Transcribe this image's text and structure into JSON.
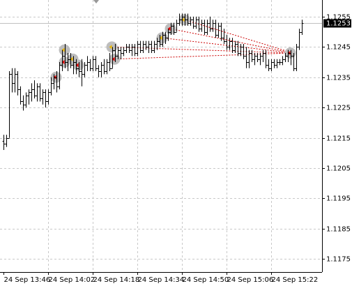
{
  "chart_data": {
    "type": "ohlc",
    "categories": [
      "24 Sep 13:46",
      null,
      null,
      null,
      null,
      null,
      null,
      null,
      null,
      null,
      null,
      null,
      null,
      null,
      null,
      null,
      "24 Sep 14:02",
      null,
      null,
      null,
      null,
      null,
      null,
      null,
      null,
      null,
      null,
      null,
      null,
      null,
      null,
      null,
      "24 Sep 14:18",
      null,
      null,
      null,
      null,
      null,
      null,
      null,
      null,
      null,
      null,
      null,
      null,
      null,
      null,
      null,
      "24 Sep 14:34",
      null,
      null,
      null,
      null,
      null,
      null,
      null,
      null,
      null,
      null,
      null,
      null,
      null,
      null,
      null,
      "24 Sep 14:50",
      null,
      null,
      null,
      null,
      null,
      null,
      null,
      null,
      null,
      null,
      null,
      null,
      null,
      null,
      null,
      "24 Sep 15:06",
      null,
      null,
      null,
      null,
      null,
      null,
      null,
      null,
      null,
      null,
      null,
      null,
      null,
      null,
      null,
      "24 Sep 15:22",
      null,
      null,
      null,
      null,
      null,
      null,
      null,
      null,
      null,
      null,
      null
    ],
    "ohlc": [
      [
        1.1214,
        1.1216,
        1.1211,
        1.1213
      ],
      [
        1.1213,
        1.1216,
        1.1212,
        1.1215
      ],
      [
        1.1215,
        1.1237,
        1.1215,
        1.1236
      ],
      [
        1.1236,
        1.1238,
        1.123,
        1.1233
      ],
      [
        1.1233,
        1.1238,
        1.123,
        1.1236
      ],
      [
        1.1236,
        1.1237,
        1.1229,
        1.1231
      ],
      [
        1.1231,
        1.1232,
        1.1226,
        1.1227
      ],
      [
        1.1227,
        1.1229,
        1.1224,
        1.1226
      ],
      [
        1.1226,
        1.123,
        1.1225,
        1.1229
      ],
      [
        1.1229,
        1.1231,
        1.1226,
        1.123
      ],
      [
        1.123,
        1.1233,
        1.1227,
        1.1231
      ],
      [
        1.1231,
        1.1234,
        1.1228,
        1.1229
      ],
      [
        1.1229,
        1.1233,
        1.1227,
        1.1232
      ],
      [
        1.1232,
        1.1233,
        1.1227,
        1.1228
      ],
      [
        1.1228,
        1.1231,
        1.1226,
        1.123
      ],
      [
        1.123,
        1.1231,
        1.1225,
        1.1227
      ],
      [
        1.1227,
        1.1231,
        1.1226,
        1.123
      ],
      [
        1.123,
        1.1235,
        1.1229,
        1.1233
      ],
      [
        1.1233,
        1.1236,
        1.1231,
        1.1235
      ],
      [
        1.1235,
        1.1237,
        1.123,
        1.1232
      ],
      [
        1.1232,
        1.124,
        1.1231,
        1.1239
      ],
      [
        1.1239,
        1.1244,
        1.1237,
        1.1242
      ],
      [
        1.1242,
        1.1246,
        1.1238,
        1.124
      ],
      [
        1.124,
        1.1243,
        1.1237,
        1.1241
      ],
      [
        1.1241,
        1.1243,
        1.1238,
        1.1239
      ],
      [
        1.1239,
        1.1242,
        1.1236,
        1.124
      ],
      [
        1.124,
        1.1241,
        1.1236,
        1.1238
      ],
      [
        1.1238,
        1.124,
        1.1235,
        1.1237
      ],
      [
        1.1237,
        1.1241,
        1.1232,
        1.1236
      ],
      [
        1.1236,
        1.124,
        1.1235,
        1.1239
      ],
      [
        1.1239,
        1.1242,
        1.1237,
        1.124
      ],
      [
        1.124,
        1.1241,
        1.1237,
        1.1238
      ],
      [
        1.1238,
        1.1242,
        1.1237,
        1.1241
      ],
      [
        1.1241,
        1.1242,
        1.1237,
        1.1238
      ],
      [
        1.1238,
        1.1239,
        1.1235,
        1.1237
      ],
      [
        1.1237,
        1.124,
        1.1235,
        1.1239
      ],
      [
        1.1239,
        1.1241,
        1.1236,
        1.1237
      ],
      [
        1.1237,
        1.1241,
        1.1236,
        1.124
      ],
      [
        1.124,
        1.1243,
        1.1237,
        1.1238
      ],
      [
        1.1238,
        1.1245,
        1.1238,
        1.1244
      ],
      [
        1.1244,
        1.1246,
        1.124,
        1.1242
      ],
      [
        1.1242,
        1.1245,
        1.1241,
        1.1244
      ],
      [
        1.1244,
        1.1245,
        1.1241,
        1.1243
      ],
      [
        1.1243,
        1.1245,
        1.1242,
        1.1244
      ],
      [
        1.1244,
        1.1246,
        1.1243,
        1.1245
      ],
      [
        1.1245,
        1.1246,
        1.1243,
        1.1244
      ],
      [
        1.1244,
        1.1246,
        1.1242,
        1.1245
      ],
      [
        1.1245,
        1.1246,
        1.1242,
        1.1243
      ],
      [
        1.1243,
        1.1247,
        1.1242,
        1.1246
      ],
      [
        1.1246,
        1.1247,
        1.1243,
        1.1244
      ],
      [
        1.1244,
        1.1247,
        1.1243,
        1.1246
      ],
      [
        1.1246,
        1.1247,
        1.1244,
        1.1245
      ],
      [
        1.1245,
        1.1247,
        1.1243,
        1.1246
      ],
      [
        1.1246,
        1.1247,
        1.1243,
        1.1244
      ],
      [
        1.1244,
        1.1247,
        1.1243,
        1.1246
      ],
      [
        1.1246,
        1.1248,
        1.1244,
        1.1247
      ],
      [
        1.1247,
        1.1249,
        1.1245,
        1.1246
      ],
      [
        1.1246,
        1.125,
        1.1245,
        1.1249
      ],
      [
        1.1249,
        1.125,
        1.1246,
        1.1248
      ],
      [
        1.1248,
        1.1251,
        1.1247,
        1.125
      ],
      [
        1.125,
        1.1253,
        1.1249,
        1.1252
      ],
      [
        1.1252,
        1.1253,
        1.1249,
        1.125
      ],
      [
        1.125,
        1.1254,
        1.125,
        1.1253
      ],
      [
        1.1253,
        1.1256,
        1.1252,
        1.1254
      ],
      [
        1.1254,
        1.1256,
        1.1252,
        1.1255
      ],
      [
        1.1255,
        1.1256,
        1.1252,
        1.1254
      ],
      [
        1.1254,
        1.1256,
        1.1252,
        1.1253
      ],
      [
        1.1253,
        1.1255,
        1.1252,
        1.1254
      ],
      [
        1.1254,
        1.1255,
        1.1251,
        1.1252
      ],
      [
        1.1252,
        1.1255,
        1.1251,
        1.1254
      ],
      [
        1.1254,
        1.1255,
        1.125,
        1.1251
      ],
      [
        1.1251,
        1.1254,
        1.125,
        1.1253
      ],
      [
        1.1253,
        1.1254,
        1.1249,
        1.125
      ],
      [
        1.125,
        1.1254,
        1.1249,
        1.1253
      ],
      [
        1.1253,
        1.1255,
        1.125,
        1.1251
      ],
      [
        1.1251,
        1.1254,
        1.125,
        1.1253
      ],
      [
        1.1253,
        1.1254,
        1.1248,
        1.1249
      ],
      [
        1.1249,
        1.1253,
        1.1248,
        1.1252
      ],
      [
        1.1252,
        1.1253,
        1.1247,
        1.1248
      ],
      [
        1.1248,
        1.1251,
        1.1246,
        1.1247
      ],
      [
        1.1247,
        1.1249,
        1.1244,
        1.1245
      ],
      [
        1.1245,
        1.1248,
        1.1244,
        1.1247
      ],
      [
        1.1247,
        1.1248,
        1.1243,
        1.1244
      ],
      [
        1.1244,
        1.1247,
        1.1243,
        1.1246
      ],
      [
        1.1246,
        1.1247,
        1.1242,
        1.1243
      ],
      [
        1.1243,
        1.1246,
        1.1242,
        1.1245
      ],
      [
        1.1245,
        1.1246,
        1.1241,
        1.1242
      ],
      [
        1.1242,
        1.1245,
        1.1238,
        1.124
      ],
      [
        1.124,
        1.1244,
        1.1238,
        1.1243
      ],
      [
        1.1243,
        1.1244,
        1.124,
        1.1241
      ],
      [
        1.1241,
        1.1243,
        1.1239,
        1.1242
      ],
      [
        1.1242,
        1.1243,
        1.124,
        1.1241
      ],
      [
        1.1241,
        1.1243,
        1.1239,
        1.1242
      ],
      [
        1.1242,
        1.1244,
        1.124,
        1.1243
      ],
      [
        1.1243,
        1.1244,
        1.1238,
        1.1239
      ],
      [
        1.1239,
        1.1241,
        1.1237,
        1.1238
      ],
      [
        1.1238,
        1.1241,
        1.1237,
        1.124
      ],
      [
        1.124,
        1.1241,
        1.1238,
        1.1239
      ],
      [
        1.1239,
        1.1241,
        1.1238,
        1.124
      ],
      [
        1.124,
        1.1241,
        1.1239,
        1.124
      ],
      [
        1.124,
        1.1242,
        1.1239,
        1.1241
      ],
      [
        1.1241,
        1.1243,
        1.124,
        1.1242
      ],
      [
        1.1242,
        1.1244,
        1.124,
        1.1243
      ],
      [
        1.1243,
        1.1244,
        1.1239,
        1.1242
      ],
      [
        1.1242,
        1.1243,
        1.1237,
        1.1238
      ],
      [
        1.1238,
        1.1246,
        1.1237,
        1.1245
      ],
      [
        1.1245,
        1.1251,
        1.1244,
        1.125
      ],
      [
        1.125,
        1.1254,
        1.1249,
        1.1253
      ]
    ],
    "color": "#000000",
    "ylim": [
      1.11707,
      1.12605
    ],
    "yticks": [
      1.1255,
      1.1245,
      1.1235,
      1.1225,
      1.1215,
      1.1205,
      1.1195,
      1.1185,
      1.1175
    ],
    "grid": true,
    "last_price": 1.1253,
    "markers": [
      [
        19,
        1.1235
      ],
      [
        22,
        1.1244
      ],
      [
        22,
        1.124
      ],
      [
        25,
        1.1241
      ],
      [
        27,
        1.1239
      ],
      [
        39,
        1.1245
      ],
      [
        40,
        1.1241
      ],
      [
        57,
        1.1248
      ],
      [
        60,
        1.1251
      ],
      [
        65,
        1.1254
      ],
      [
        103,
        1.1243
      ]
    ],
    "trades": [
      [
        39,
        1.1245,
        103,
        1.1243
      ],
      [
        40,
        1.1241,
        103,
        1.1243
      ],
      [
        57,
        1.1248,
        104,
        1.1243
      ],
      [
        60,
        1.1251,
        104,
        1.1243
      ],
      [
        65,
        1.1254,
        104,
        1.1243
      ]
    ],
    "trade_color": "#cc0000"
  }
}
